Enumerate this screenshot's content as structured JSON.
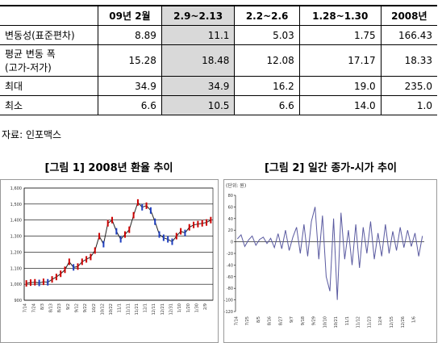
{
  "table": {
    "columns": [
      "09년 2월",
      "2.9~2.13",
      "2.2~2.6",
      "1.28~1.30",
      "2008년"
    ],
    "rows": [
      {
        "label": "변동성(표준편차)",
        "values": [
          "8.89",
          "11.1",
          "5.03",
          "1.75",
          "166.43"
        ]
      },
      {
        "label": [
          "평균 변동 폭",
          "(고가-저가)"
        ],
        "values": [
          "15.28",
          "18.48",
          "12.08",
          "17.17",
          "18.33"
        ]
      },
      {
        "label": "최대",
        "values": [
          "34.9",
          "34.9",
          "16.2",
          "19.0",
          "235.0"
        ]
      },
      {
        "label": "최소",
        "values": [
          "6.6",
          "10.5",
          "6.6",
          "14.0",
          "1.0"
        ]
      }
    ]
  },
  "source": "자료: 인포맥스",
  "chart_data": [
    {
      "type": "line",
      "title": "[그림 1] 2008년 환율 추이",
      "color": "#cc0000",
      "grid": true,
      "categories": [
        "7/14",
        null,
        "7/24",
        null,
        "8/3",
        null,
        "8/13",
        null,
        "8/23",
        null,
        "9/2",
        null,
        "9/12",
        null,
        "9/22",
        null,
        "10/2",
        null,
        "10/12",
        null,
        "10/22",
        null,
        "11/1",
        null,
        "11/11",
        null,
        "11/21",
        null,
        "12/1",
        null,
        "12/11",
        null,
        "12/21",
        null,
        "12/31",
        null,
        "1/10",
        null,
        "1/20",
        null,
        "1/30",
        null,
        "2/9",
        null
      ],
      "values": [
        1005,
        1010,
        1012,
        1008,
        1015,
        1012,
        1030,
        1045,
        1065,
        1090,
        1140,
        1105,
        1110,
        1140,
        1155,
        1170,
        1210,
        1300,
        1250,
        1380,
        1400,
        1330,
        1280,
        1310,
        1340,
        1430,
        1510,
        1480,
        1490,
        1460,
        1390,
        1310,
        1290,
        1280,
        1265,
        1300,
        1330,
        1320,
        1355,
        1370,
        1375,
        1380,
        1385,
        1400
      ],
      "ylim": [
        900,
        1600
      ],
      "yticks": [
        {
          "value": 900,
          "label": "900"
        },
        {
          "value": 1000,
          "label": "1,000"
        },
        {
          "value": 1100,
          "label": "1,100"
        },
        {
          "value": 1200,
          "label": "1,200"
        },
        {
          "value": 1300,
          "label": "1,300"
        },
        {
          "value": 1400,
          "label": "1,400"
        },
        {
          "value": 1500,
          "label": "1,500"
        },
        {
          "value": 1600,
          "label": "1,600"
        }
      ]
    },
    {
      "type": "line",
      "title": "[그림 2] 일간 종가-시가 추이",
      "unit": "(단위: 원)",
      "color": "#5a5aa0",
      "grid": false,
      "categories": [
        "7/14",
        null,
        null,
        "7/25",
        null,
        null,
        "8/5",
        null,
        null,
        "8/16",
        null,
        null,
        "8/27",
        null,
        null,
        "9/7",
        null,
        null,
        "9/18",
        null,
        null,
        "9/29",
        null,
        null,
        "10/10",
        null,
        null,
        "10/21",
        null,
        null,
        "11/1",
        null,
        null,
        "11/12",
        null,
        null,
        "11/23",
        null,
        null,
        "12/4",
        null,
        null,
        "12/15",
        null,
        null,
        "12/26",
        null,
        null,
        "1/6",
        null,
        null
      ],
      "values": [
        5,
        12,
        -8,
        3,
        10,
        -6,
        4,
        8,
        -3,
        6,
        -10,
        14,
        -12,
        20,
        -15,
        8,
        25,
        -20,
        30,
        -25,
        35,
        60,
        -30,
        45,
        -60,
        -85,
        40,
        -100,
        50,
        -30,
        20,
        -40,
        30,
        -45,
        25,
        -20,
        35,
        -30,
        15,
        -25,
        30,
        -20,
        18,
        -15,
        25,
        -10,
        20,
        -8,
        15,
        -25,
        10
      ],
      "ylim": [
        -120,
        80
      ],
      "yticks": [
        -120,
        -100,
        -80,
        -60,
        -40,
        -20,
        0,
        20,
        40,
        60,
        80
      ]
    }
  ]
}
